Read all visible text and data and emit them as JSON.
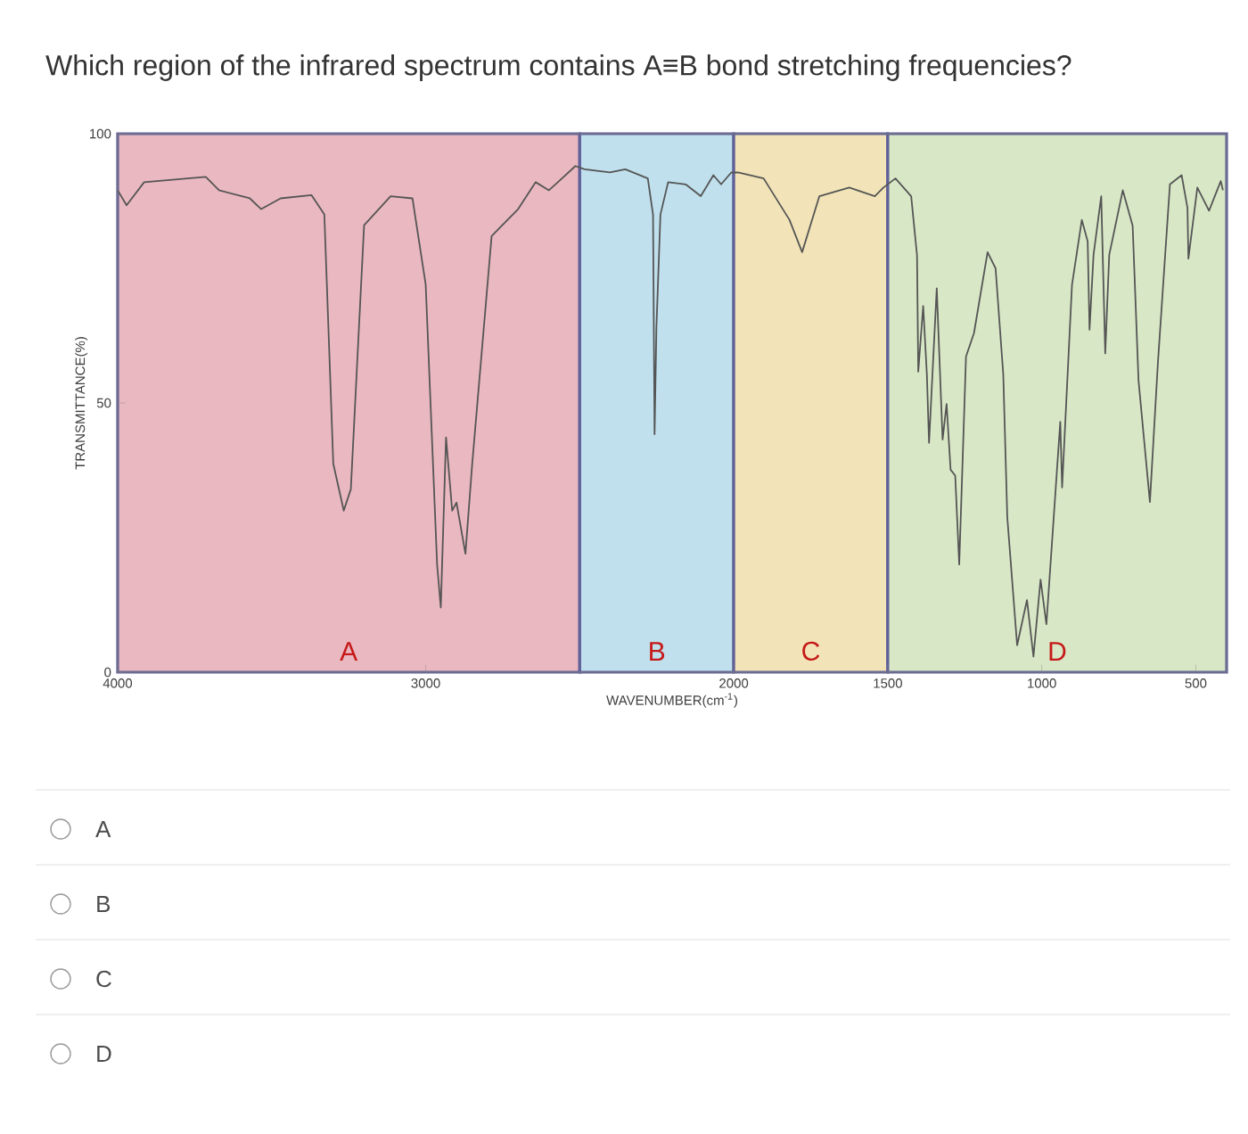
{
  "chart_data": {
    "type": "line",
    "title": "Which region of the infrared spectrum contains A≡B bond stretching frequencies?",
    "xlabel": "WAVENUMBER(cm$^{-1}$)",
    "ylabel": "TRANSMITTANCE(%)",
    "xlim": [
      4000,
      400
    ],
    "xticks": [
      4000,
      3000,
      2000,
      1500,
      1000,
      500
    ],
    "ylim": [
      0,
      100
    ],
    "yticks": [
      0,
      50,
      100
    ],
    "bands": [
      {
        "axis": "x",
        "from": 4000,
        "to": 2500,
        "label": "A",
        "color": "#eab8c0"
      },
      {
        "axis": "x",
        "from": 2500,
        "to": 2000,
        "label": "B",
        "color": "#bfe0ec"
      },
      {
        "axis": "x",
        "from": 2000,
        "to": 1500,
        "label": "C",
        "color": "#f2e4b8"
      },
      {
        "axis": "x",
        "from": 1500,
        "to": 400,
        "label": "D",
        "color": "#d8e8c6"
      }
    ],
    "series": [
      {
        "color": "#555555",
        "x": [
          4000,
          3971,
          3914,
          3714,
          3671,
          3571,
          3534,
          3471,
          3371,
          3329,
          3300,
          3266,
          3243,
          3200,
          3114,
          3043,
          3000,
          2963,
          2951,
          2934,
          2914,
          2900,
          2871,
          2849,
          2786,
          2700,
          2643,
          2600,
          2571,
          2514,
          2484,
          2402,
          2352,
          2279,
          2262,
          2257,
          2251,
          2238,
          2213,
          2156,
          2107,
          2066,
          2041,
          2008,
          1986,
          1903,
          1819,
          1778,
          1722,
          1625,
          1542,
          1514,
          1475,
          1424,
          1405,
          1401,
          1385,
          1373,
          1366,
          1341,
          1322,
          1309,
          1296,
          1281,
          1268,
          1246,
          1220,
          1176,
          1150,
          1125,
          1112,
          1080,
          1048,
          1027,
          1004,
          985,
          940,
          934,
          902,
          870,
          851,
          845,
          832,
          807,
          794,
          781,
          737,
          705,
          686,
          649,
          623,
          584,
          546,
          527,
          524,
          495,
          457,
          419,
          412
        ],
        "values": [
          89.5,
          86.7,
          91,
          92,
          89.5,
          88,
          86,
          88,
          88.6,
          85,
          38.7,
          30,
          34,
          83,
          88.4,
          88,
          72,
          20,
          12,
          43.6,
          30,
          31.5,
          22,
          38.7,
          81,
          86,
          91,
          89.5,
          91,
          94,
          93.4,
          92.8,
          93.4,
          91.7,
          85,
          44.2,
          64,
          85,
          91,
          90.6,
          88.4,
          92.3,
          90.6,
          92.8,
          92.8,
          91.7,
          84,
          78,
          88.4,
          90,
          88.4,
          90,
          91.7,
          88.4,
          77.4,
          55.8,
          68,
          55.3,
          42.6,
          71.3,
          43.2,
          49.8,
          37.6,
          36.5,
          20,
          58.6,
          63,
          78,
          75,
          55.3,
          28.8,
          5,
          13.4,
          2.9,
          17.2,
          8.9,
          46.5,
          34.3,
          71.9,
          84,
          80,
          63.6,
          77.5,
          88.4,
          59.2,
          77.5,
          89.5,
          82.9,
          54.2,
          31.6,
          57.5,
          90.6,
          92.3,
          86.2,
          76.8,
          90,
          85.7,
          91.2,
          89.5
        ]
      }
    ],
    "annotations": [
      "A",
      "B",
      "C",
      "D"
    ]
  }
}
